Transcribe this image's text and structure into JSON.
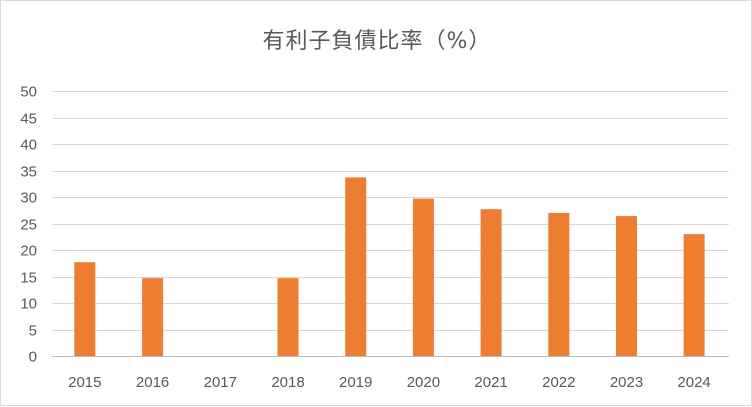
{
  "chart_data": {
    "type": "bar",
    "title": "有利子負債比率（%）",
    "categories": [
      "2015",
      "2016",
      "2017",
      "2018",
      "2019",
      "2020",
      "2021",
      "2022",
      "2023",
      "2024"
    ],
    "values": [
      17.7,
      14.7,
      0,
      14.7,
      33.7,
      29.7,
      27.7,
      27.0,
      26.4,
      23.0
    ],
    "ylim": [
      0,
      50
    ],
    "yticks": [
      0,
      5,
      10,
      15,
      20,
      25,
      30,
      35,
      40,
      45,
      50
    ],
    "xlabel": "",
    "ylabel": "",
    "grid": true,
    "bar_color": "#ED7D31",
    "grid_color": "#D9D9D9",
    "axis_color": "#BFBFBF",
    "text_color": "#595959"
  }
}
